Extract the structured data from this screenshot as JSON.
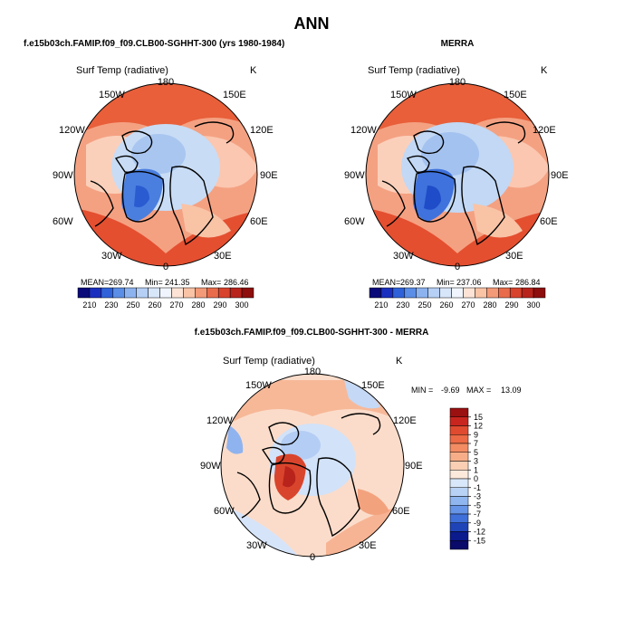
{
  "figure": {
    "title": "ANN",
    "panels": [
      {
        "id": "model",
        "title": "f.e15b03ch.FAMIP.f09_f09.CLB00-SGHHT-300 (yrs 1980-1984)",
        "variable": "Surf Temp (radiative)",
        "units": "K",
        "stats": {
          "mean_label": "MEAN=",
          "mean": "269.74",
          "min_label": "Min=",
          "min": "241.35",
          "max_label": "Max=",
          "max": "286.46"
        }
      },
      {
        "id": "obs",
        "title": "MERRA",
        "variable": "Surf Temp (radiative)",
        "units": "K",
        "stats": {
          "mean_label": "MEAN=",
          "mean": "269.37",
          "min_label": "Min=",
          "min": "237.06",
          "max_label": "Max=",
          "max": "286.84"
        }
      },
      {
        "id": "diff",
        "title": "f.e15b03ch.FAMIP.f09_f09.CLB00-SGHHT-300 - MERRA",
        "variable": "Surf Temp (radiative)",
        "units": "K",
        "stats": {
          "min_label": "MIN =",
          "min": "-9.69",
          "max_label": "MAX =",
          "max": "13.09"
        }
      }
    ],
    "lon_labels": [
      "180",
      "150E",
      "120E",
      "90E",
      "60E",
      "30E",
      "0",
      "30W",
      "60W",
      "90W",
      "120W",
      "150W"
    ],
    "abs_colorbar": {
      "labels": [
        "210",
        "230",
        "250",
        "260",
        "270",
        "280",
        "290",
        "300"
      ],
      "colors": [
        "#0a0a7a",
        "#1a2fbf",
        "#2f62d9",
        "#5b8ee6",
        "#8db3ef",
        "#b5cff5",
        "#d8e6fa",
        "#f0f5fd",
        "#fde3d5",
        "#f9c3a6",
        "#f39a78",
        "#e86c4c",
        "#d8432e",
        "#b8231c",
        "#8e0d0d"
      ]
    },
    "diff_colorbar": {
      "labels": [
        "15",
        "12",
        "9",
        "7",
        "5",
        "3",
        "1",
        "0",
        "-1",
        "-3",
        "-5",
        "-7",
        "-9",
        "-12",
        "-15"
      ],
      "colors": [
        "#9b1010",
        "#c8251e",
        "#e04a2f",
        "#ec6a45",
        "#f38c63",
        "#f7ae88",
        "#fbcfb3",
        "#fde9dc",
        "#d9e7fa",
        "#b8d2f6",
        "#8fb6ef",
        "#6694e6",
        "#3f6fd9",
        "#1f44b8",
        "#0b1a8c",
        "#0a0a6a"
      ]
    }
  },
  "chart_data": [
    {
      "type": "heatmap",
      "title": "f.e15b03ch.FAMIP.f09_f09.CLB00-SGHHT-300 (yrs 1980-1984)",
      "variable": "Surf Temp (radiative)",
      "units": "K",
      "projection": "polar-stereographic-north",
      "mean": 269.74,
      "min": 241.35,
      "max": 286.46,
      "colorbar_levels": [
        210,
        230,
        250,
        260,
        270,
        280,
        290,
        300
      ]
    },
    {
      "type": "heatmap",
      "title": "MERRA",
      "variable": "Surf Temp (radiative)",
      "units": "K",
      "projection": "polar-stereographic-north",
      "mean": 269.37,
      "min": 237.06,
      "max": 286.84,
      "colorbar_levels": [
        210,
        230,
        250,
        260,
        270,
        280,
        290,
        300
      ]
    },
    {
      "type": "heatmap",
      "title": "f.e15b03ch.FAMIP.f09_f09.CLB00-SGHHT-300 - MERRA",
      "variable": "Surf Temp (radiative)",
      "units": "K",
      "projection": "polar-stereographic-north",
      "min": -9.69,
      "max": 13.09,
      "colorbar_levels": [
        15,
        12,
        9,
        7,
        5,
        3,
        1,
        0,
        -1,
        -3,
        -5,
        -7,
        -9,
        -12,
        -15
      ]
    }
  ]
}
